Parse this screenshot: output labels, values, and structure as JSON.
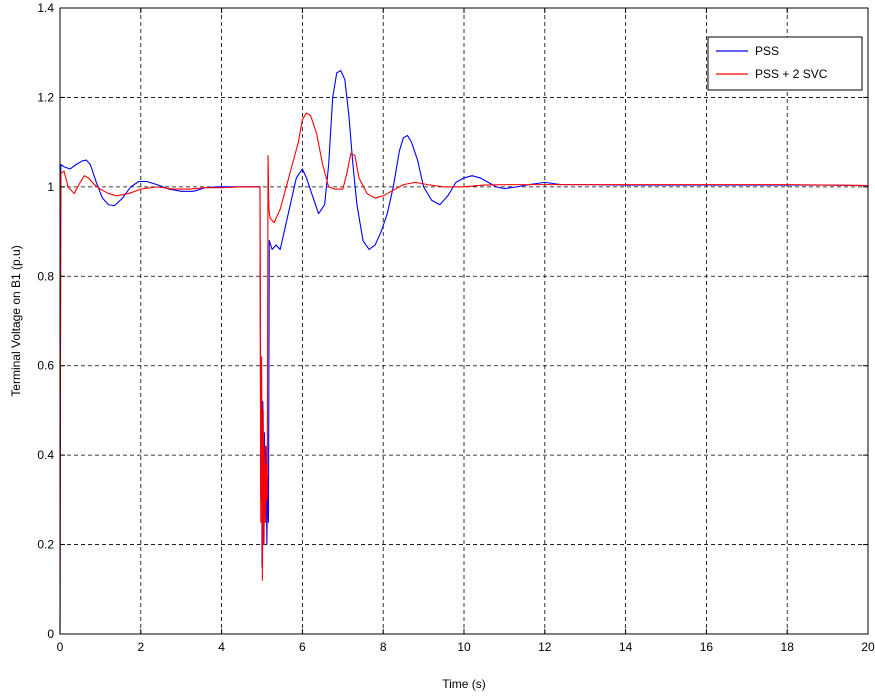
{
  "chart_data": {
    "type": "line",
    "title": "",
    "xlabel": "Time (s)",
    "ylabel": "Terminal Voltage on B1 (p.u)",
    "xlim": [
      0,
      20
    ],
    "ylim": [
      0,
      1.4
    ],
    "xticks": [
      0,
      2,
      4,
      6,
      8,
      10,
      12,
      14,
      16,
      18,
      20
    ],
    "yticks": [
      0,
      0.2,
      0.4,
      0.6,
      0.8,
      1,
      1.2,
      1.4
    ],
    "xtick_labels": [
      "0",
      "2",
      "4",
      "6",
      "8",
      "10",
      "12",
      "14",
      "16",
      "18",
      "20"
    ],
    "ytick_labels": [
      "0",
      "0.2",
      "0.4",
      "0.6",
      "0.8",
      "1",
      "1.2",
      "1.4"
    ],
    "grid": true,
    "grid_style": "dashed",
    "legend_position": "top-right",
    "series": [
      {
        "name": "PSS",
        "color": "#0000ff",
        "points": [
          [
            0,
            0
          ],
          [
            0.02,
            1.05
          ],
          [
            0.1,
            1.045
          ],
          [
            0.25,
            1.04
          ],
          [
            0.4,
            1.05
          ],
          [
            0.55,
            1.058
          ],
          [
            0.65,
            1.06
          ],
          [
            0.75,
            1.05
          ],
          [
            0.9,
            1.01
          ],
          [
            1.05,
            0.975
          ],
          [
            1.2,
            0.96
          ],
          [
            1.35,
            0.958
          ],
          [
            1.55,
            0.975
          ],
          [
            1.75,
            1.0
          ],
          [
            1.95,
            1.012
          ],
          [
            2.15,
            1.012
          ],
          [
            2.4,
            1.005
          ],
          [
            2.7,
            0.995
          ],
          [
            3.0,
            0.99
          ],
          [
            3.3,
            0.99
          ],
          [
            3.6,
            0.998
          ],
          [
            3.9,
            1.0
          ],
          [
            4.2,
            1.0
          ],
          [
            4.6,
            1.0
          ],
          [
            4.95,
            1.0
          ],
          [
            4.97,
            0.3
          ],
          [
            4.99,
            0.55
          ],
          [
            5.0,
            0.15
          ],
          [
            5.02,
            0.52
          ],
          [
            5.04,
            0.2
          ],
          [
            5.06,
            0.45
          ],
          [
            5.08,
            0.25
          ],
          [
            5.1,
            0.42
          ],
          [
            5.12,
            0.2
          ],
          [
            5.14,
            0.35
          ],
          [
            5.16,
            0.25
          ],
          [
            5.18,
            0.88
          ],
          [
            5.25,
            0.86
          ],
          [
            5.35,
            0.87
          ],
          [
            5.45,
            0.86
          ],
          [
            5.55,
            0.9
          ],
          [
            5.7,
            0.96
          ],
          [
            5.85,
            1.02
          ],
          [
            6.0,
            1.04
          ],
          [
            6.1,
            1.02
          ],
          [
            6.25,
            0.98
          ],
          [
            6.4,
            0.94
          ],
          [
            6.55,
            0.96
          ],
          [
            6.65,
            1.05
          ],
          [
            6.75,
            1.2
          ],
          [
            6.85,
            1.255
          ],
          [
            6.95,
            1.26
          ],
          [
            7.05,
            1.24
          ],
          [
            7.15,
            1.16
          ],
          [
            7.25,
            1.05
          ],
          [
            7.35,
            0.96
          ],
          [
            7.5,
            0.88
          ],
          [
            7.65,
            0.86
          ],
          [
            7.8,
            0.87
          ],
          [
            7.95,
            0.9
          ],
          [
            8.1,
            0.94
          ],
          [
            8.25,
            1.0
          ],
          [
            8.4,
            1.08
          ],
          [
            8.5,
            1.11
          ],
          [
            8.6,
            1.115
          ],
          [
            8.7,
            1.1
          ],
          [
            8.85,
            1.06
          ],
          [
            9.0,
            1.0
          ],
          [
            9.2,
            0.97
          ],
          [
            9.4,
            0.96
          ],
          [
            9.6,
            0.98
          ],
          [
            9.8,
            1.01
          ],
          [
            10.0,
            1.02
          ],
          [
            10.2,
            1.025
          ],
          [
            10.4,
            1.02
          ],
          [
            10.6,
            1.01
          ],
          [
            10.8,
            1.0
          ],
          [
            11.0,
            0.996
          ],
          [
            11.3,
            1.0
          ],
          [
            11.6,
            1.005
          ],
          [
            12.0,
            1.01
          ],
          [
            12.4,
            1.005
          ],
          [
            13.0,
            1.005
          ],
          [
            14.0,
            1.004
          ],
          [
            15.0,
            1.004
          ],
          [
            16.0,
            1.004
          ],
          [
            17.0,
            1.004
          ],
          [
            18.0,
            1.004
          ],
          [
            19.0,
            1.004
          ],
          [
            20.0,
            1.003
          ]
        ]
      },
      {
        "name": "PSS + 2 SVC",
        "color": "#ff0000",
        "points": [
          [
            0,
            0
          ],
          [
            0.02,
            1.03
          ],
          [
            0.1,
            1.035
          ],
          [
            0.2,
            1.0
          ],
          [
            0.35,
            0.985
          ],
          [
            0.5,
            1.01
          ],
          [
            0.6,
            1.025
          ],
          [
            0.7,
            1.02
          ],
          [
            0.85,
            1.005
          ],
          [
            1.0,
            0.995
          ],
          [
            1.2,
            0.985
          ],
          [
            1.4,
            0.98
          ],
          [
            1.7,
            0.985
          ],
          [
            2.0,
            0.995
          ],
          [
            2.4,
            1.0
          ],
          [
            2.8,
            0.995
          ],
          [
            3.2,
            0.995
          ],
          [
            3.6,
            0.998
          ],
          [
            4.0,
            0.998
          ],
          [
            4.5,
            1.0
          ],
          [
            4.95,
            1.0
          ],
          [
            4.97,
            0.25
          ],
          [
            4.99,
            0.62
          ],
          [
            5.01,
            0.12
          ],
          [
            5.03,
            0.5
          ],
          [
            5.05,
            0.2
          ],
          [
            5.07,
            0.42
          ],
          [
            5.09,
            0.25
          ],
          [
            5.11,
            0.38
          ],
          [
            5.13,
            0.3
          ],
          [
            5.15,
            1.07
          ],
          [
            5.17,
            0.95
          ],
          [
            5.2,
            0.93
          ],
          [
            5.3,
            0.92
          ],
          [
            5.45,
            0.95
          ],
          [
            5.6,
            1.0
          ],
          [
            5.75,
            1.05
          ],
          [
            5.9,
            1.1
          ],
          [
            6.0,
            1.15
          ],
          [
            6.1,
            1.165
          ],
          [
            6.2,
            1.16
          ],
          [
            6.35,
            1.12
          ],
          [
            6.5,
            1.05
          ],
          [
            6.65,
            1.0
          ],
          [
            6.8,
            0.995
          ],
          [
            7.0,
            0.995
          ],
          [
            7.1,
            1.03
          ],
          [
            7.2,
            1.075
          ],
          [
            7.3,
            1.07
          ],
          [
            7.4,
            1.02
          ],
          [
            7.6,
            0.985
          ],
          [
            7.8,
            0.975
          ],
          [
            8.0,
            0.98
          ],
          [
            8.2,
            0.99
          ],
          [
            8.5,
            1.005
          ],
          [
            8.8,
            1.01
          ],
          [
            9.1,
            1.005
          ],
          [
            9.5,
            1.0
          ],
          [
            10.0,
            1.0
          ],
          [
            10.5,
            1.004
          ],
          [
            11.0,
            1.005
          ],
          [
            11.5,
            1.005
          ],
          [
            12.0,
            1.005
          ],
          [
            13.0,
            1.005
          ],
          [
            14.0,
            1.005
          ],
          [
            15.0,
            1.005
          ],
          [
            16.0,
            1.005
          ],
          [
            17.0,
            1.005
          ],
          [
            18.0,
            1.005
          ],
          [
            19.0,
            1.004
          ],
          [
            20.0,
            1.003
          ]
        ]
      }
    ]
  }
}
